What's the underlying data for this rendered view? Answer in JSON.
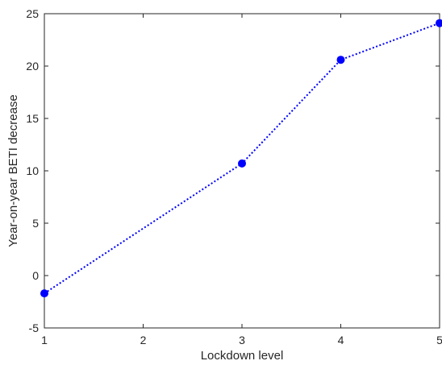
{
  "chart_data": {
    "type": "line",
    "title": "",
    "xlabel": "Lockdown level",
    "ylabel": "Year-on-year BETI decrease",
    "x": [
      1,
      3,
      4,
      5
    ],
    "series": [
      {
        "values": [
          -1.7,
          10.7,
          20.6,
          24.1
        ]
      }
    ],
    "xlim": [
      1,
      5
    ],
    "ylim": [
      -5,
      25
    ],
    "x_ticks": [
      "1",
      "2",
      "3",
      "4",
      "5"
    ],
    "y_ticks": [
      "-5",
      "0",
      "5",
      "10",
      "15",
      "20",
      "25"
    ],
    "x_tick_values": [
      1,
      2,
      3,
      4,
      5
    ],
    "y_tick_values": [
      -5,
      0,
      5,
      10,
      15,
      20,
      25
    ],
    "grid": false,
    "line_style": "dotted",
    "marker": "circle",
    "series_color": "#0000ff",
    "axis_color": "#262626"
  }
}
